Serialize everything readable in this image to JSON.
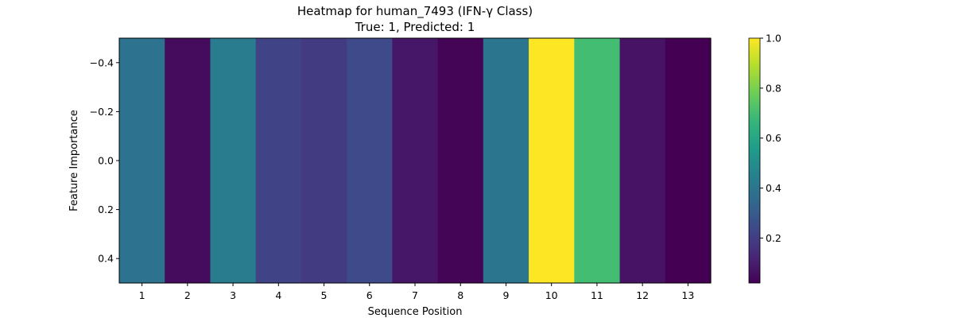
{
  "chart_data": {
    "type": "heatmap",
    "title": "Heatmap for human_7493 (IFN-γ Class)",
    "subtitle": "True: 1, Predicted: 1",
    "xlabel": "Sequence Position",
    "ylabel": "Feature Importance",
    "x_categories": [
      "1",
      "2",
      "3",
      "4",
      "5",
      "6",
      "7",
      "8",
      "9",
      "10",
      "11",
      "12",
      "13"
    ],
    "values": [
      0.39,
      0.05,
      0.43,
      0.22,
      0.19,
      0.24,
      0.08,
      0.03,
      0.4,
      1.0,
      0.7,
      0.07,
      0.02
    ],
    "ylim": [
      -0.5,
      0.5
    ],
    "y_ticks": [
      -0.4,
      -0.2,
      0.0,
      0.2,
      0.4
    ],
    "y_tick_labels": [
      "−0.4",
      "−0.2",
      "0.0",
      "0.2",
      "0.4"
    ],
    "y_inverted": true,
    "colormap": "viridis",
    "color_range": [
      0.02,
      1.0
    ],
    "colorbar": {
      "ticks": [
        0.2,
        0.4,
        0.6,
        0.8,
        1.0
      ],
      "tick_labels": [
        "0.2",
        "0.4",
        "0.6",
        "0.8",
        "1.0"
      ],
      "placement": "right"
    },
    "grid": false
  }
}
